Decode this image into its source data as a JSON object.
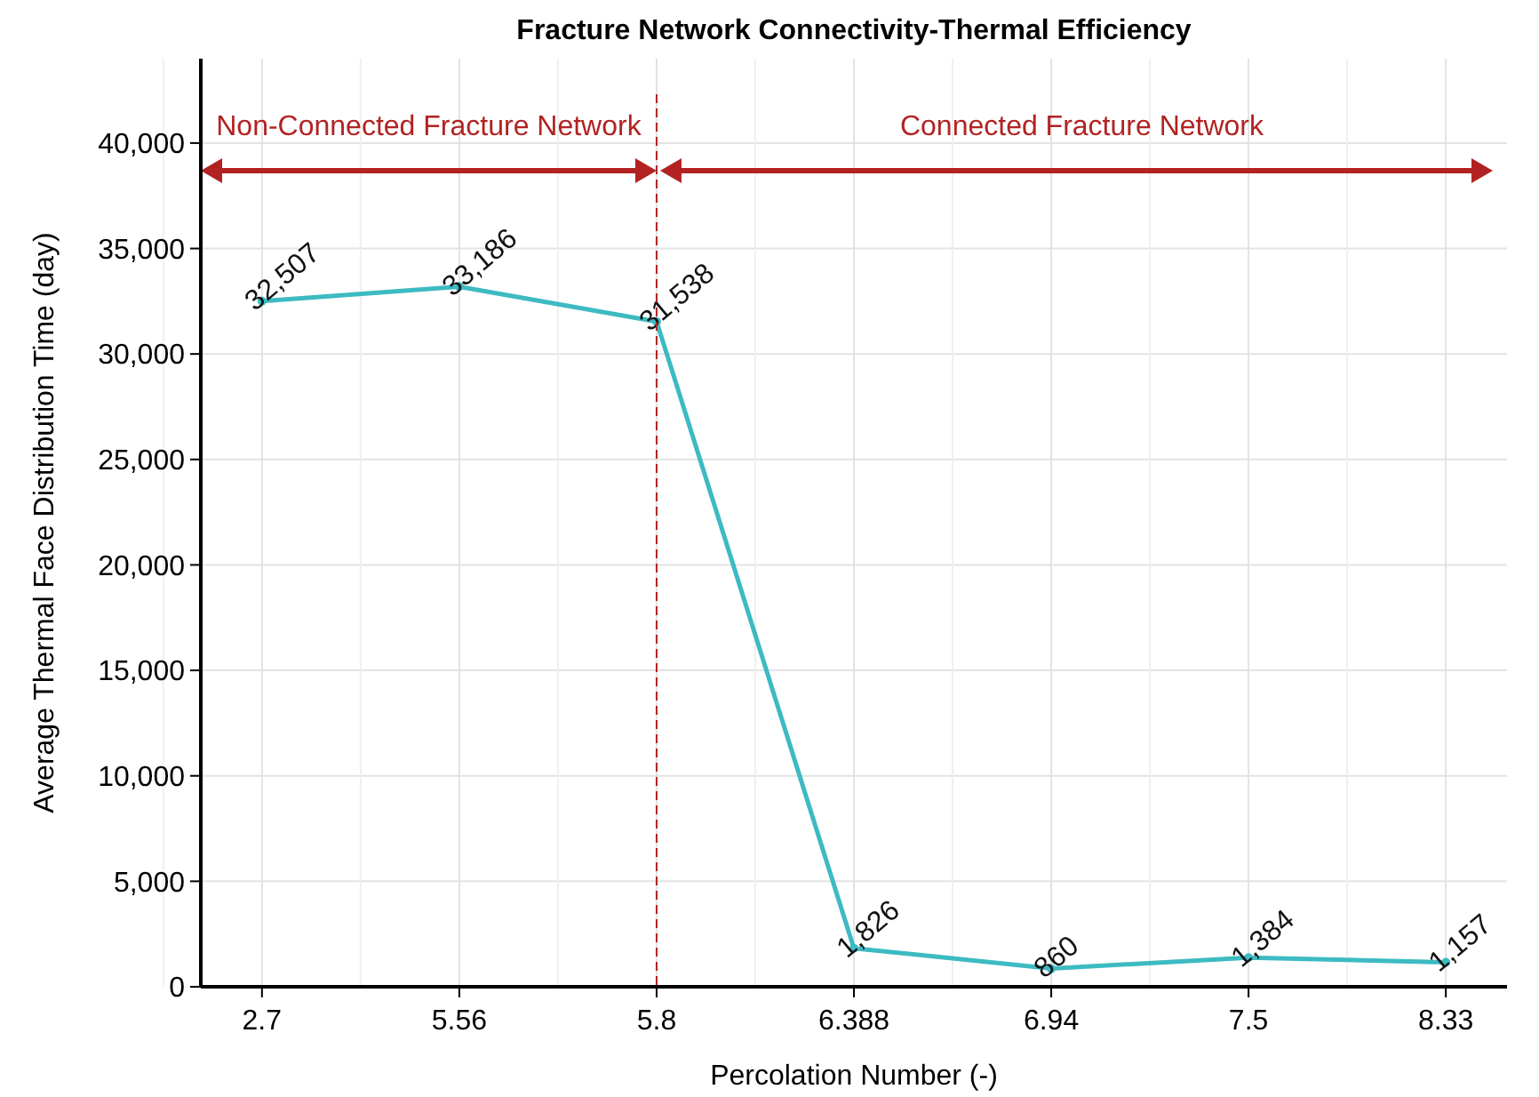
{
  "chart_data": {
    "type": "line",
    "title": "Fracture Network Connectivity-Thermal Efficiency",
    "xlabel": "Percolation Number (-)",
    "ylabel": "Average Thermal Face Distribution Time (day)",
    "categories": [
      "2.7",
      "5.56",
      "5.8",
      "6.388",
      "6.94",
      "7.5",
      "8.33"
    ],
    "series": [
      {
        "color": "#3dbac2",
        "values": [
          32507,
          33186,
          31538,
          1826,
          860,
          1384,
          1157
        ],
        "value_labels": [
          "32,507",
          "33,186",
          "31,538",
          "1,826",
          "860",
          "1,384",
          "1,157"
        ]
      }
    ],
    "ylim": [
      0,
      44000
    ],
    "yticks": [
      {
        "value": 0,
        "label": "0"
      },
      {
        "value": 5000,
        "label": "5,000"
      },
      {
        "value": 10000,
        "label": "10,000"
      },
      {
        "value": 15000,
        "label": "15,000"
      },
      {
        "value": 20000,
        "label": "20,000"
      },
      {
        "value": 25000,
        "label": "25,000"
      },
      {
        "value": 30000,
        "label": "30,000"
      },
      {
        "value": 35000,
        "label": "35,000"
      },
      {
        "value": 40000,
        "label": "40,000"
      }
    ],
    "grid": true,
    "marker": "circle",
    "ref_lines": [
      {
        "axis": "x",
        "value": "5.8",
        "color": "#b22222",
        "line_style": "dashed"
      }
    ],
    "annotations": [
      "Non-Connected Fracture Network",
      "Connected Fracture Network"
    ]
  }
}
